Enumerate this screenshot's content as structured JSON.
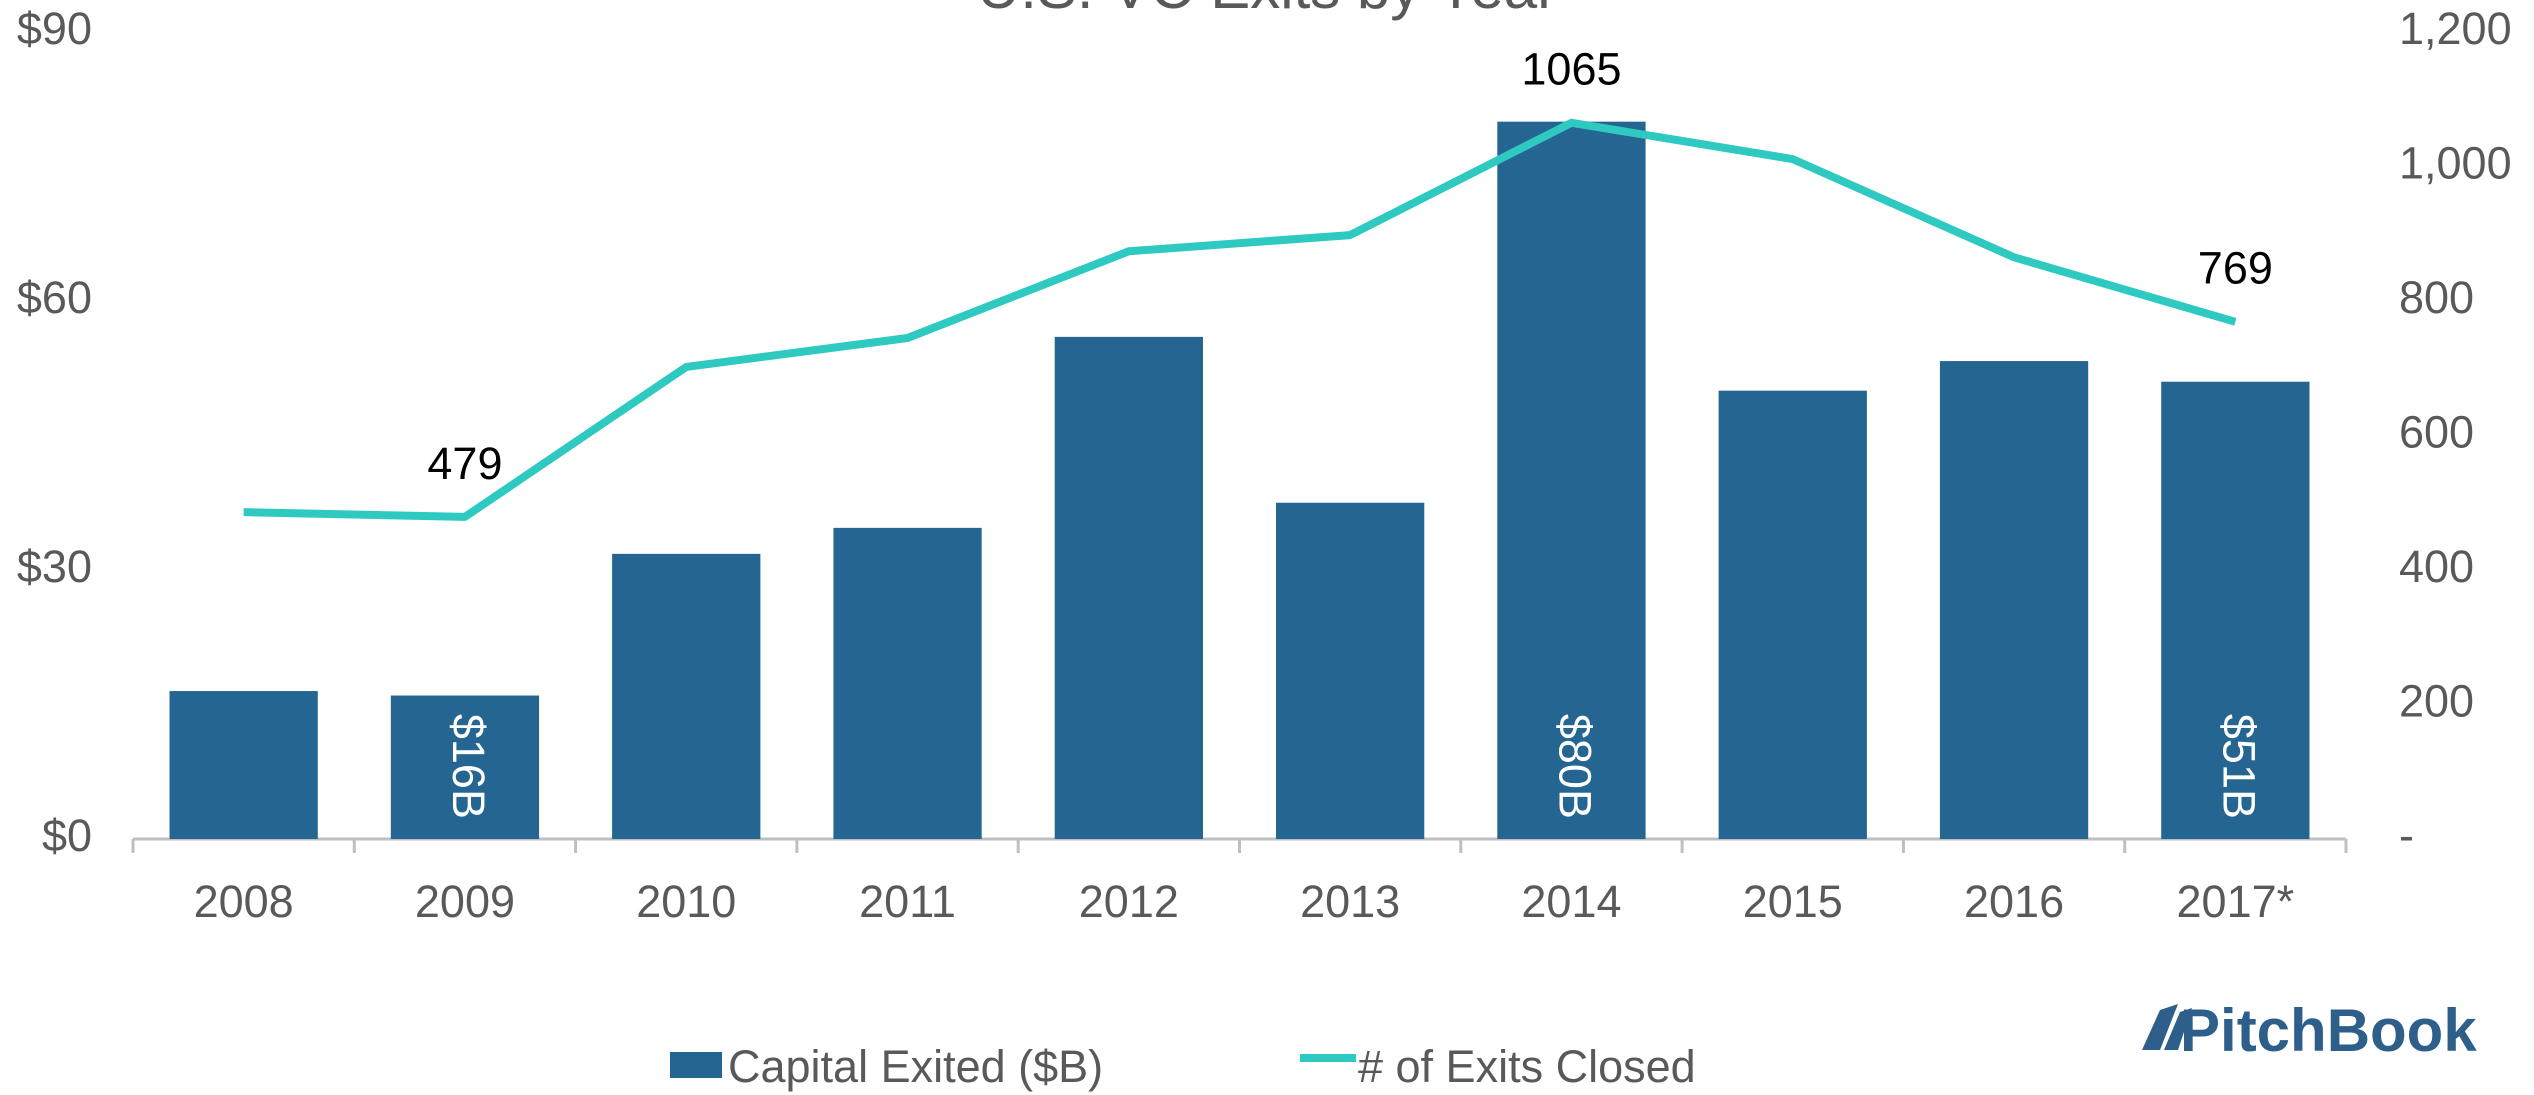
{
  "chart_data": {
    "type": "bar-line",
    "title": "U.S. VC Exits by Year",
    "categories": [
      "2008",
      "2009",
      "2010",
      "2011",
      "2012",
      "2013",
      "2014",
      "2015",
      "2016",
      "2017*"
    ],
    "series": [
      {
        "name": "Capital Exited ($B)",
        "color": "#256591",
        "type": "bar",
        "axis": "y",
        "values": [
          16.5,
          16,
          31.8,
          34.7,
          56,
          37.5,
          80,
          50,
          53.3,
          51
        ],
        "value_labels": [
          null,
          "$16B",
          null,
          null,
          null,
          null,
          "$80B",
          null,
          null,
          "$51B"
        ]
      },
      {
        "name": "# of Exits Closed",
        "color": "#2ec9c0",
        "type": "line",
        "axis": "y2",
        "values": [
          486,
          479,
          702,
          745,
          874,
          898,
          1065,
          1011,
          865,
          769
        ],
        "value_labels": [
          null,
          "479",
          null,
          null,
          null,
          null,
          "1065",
          null,
          null,
          "769"
        ]
      }
    ],
    "ylim": [
      0,
      90
    ],
    "yticks": [
      {
        "value": 0,
        "label": "$0"
      },
      {
        "value": 30,
        "label": "$30"
      },
      {
        "value": 60,
        "label": "$60"
      },
      {
        "value": 90,
        "label": "$90"
      }
    ],
    "y2lim": [
      0,
      1200
    ],
    "y2ticks": [
      {
        "value": 0,
        "label": "-"
      },
      200,
      400,
      600,
      800,
      {
        "value": 1000,
        "label": "1,000"
      },
      {
        "value": 1200,
        "label": "1,200"
      }
    ],
    "legend": "bottom",
    "brand": "PitchBook"
  }
}
